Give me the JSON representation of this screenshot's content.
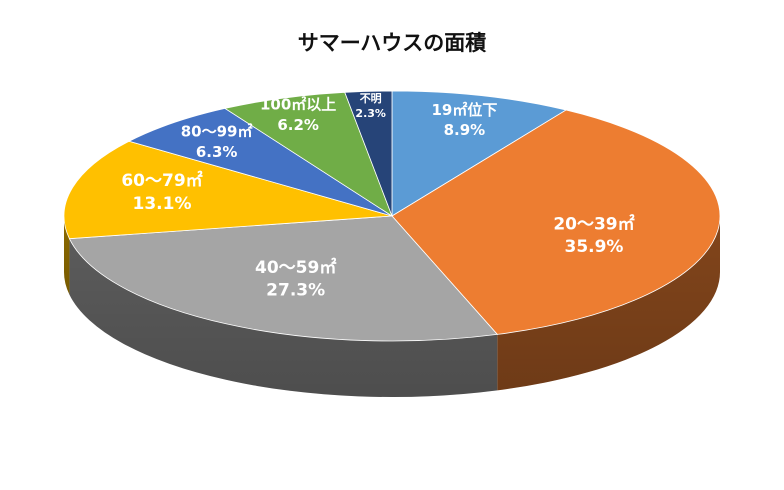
{
  "chart_data": {
    "type": "pie",
    "style": "3d",
    "title": "サマーハウスの面積",
    "start": "top-center",
    "direction": "clockwise",
    "slices": [
      {
        "label": "19㎡位下",
        "value": 8.9,
        "value_label": "8.9%",
        "color": "#5b9bd5"
      },
      {
        "label": "20〜39㎡",
        "value": 35.9,
        "value_label": "35.9%",
        "color": "#ed7d31"
      },
      {
        "label": "40〜59㎡",
        "value": 27.3,
        "value_label": "27.3%",
        "color": "#a5a5a5"
      },
      {
        "label": "60〜79㎡",
        "value": 13.1,
        "value_label": "13.1%",
        "color": "#ffc000"
      },
      {
        "label": "80〜99㎡",
        "value": 6.3,
        "value_label": "6.3%",
        "color": "#4472c4"
      },
      {
        "label": "100㎡以上",
        "value": 6.2,
        "value_label": "6.2%",
        "color": "#70ad47"
      },
      {
        "label": "不明",
        "value": 2.3,
        "value_label": "2.3%",
        "color": "#264478"
      }
    ]
  }
}
